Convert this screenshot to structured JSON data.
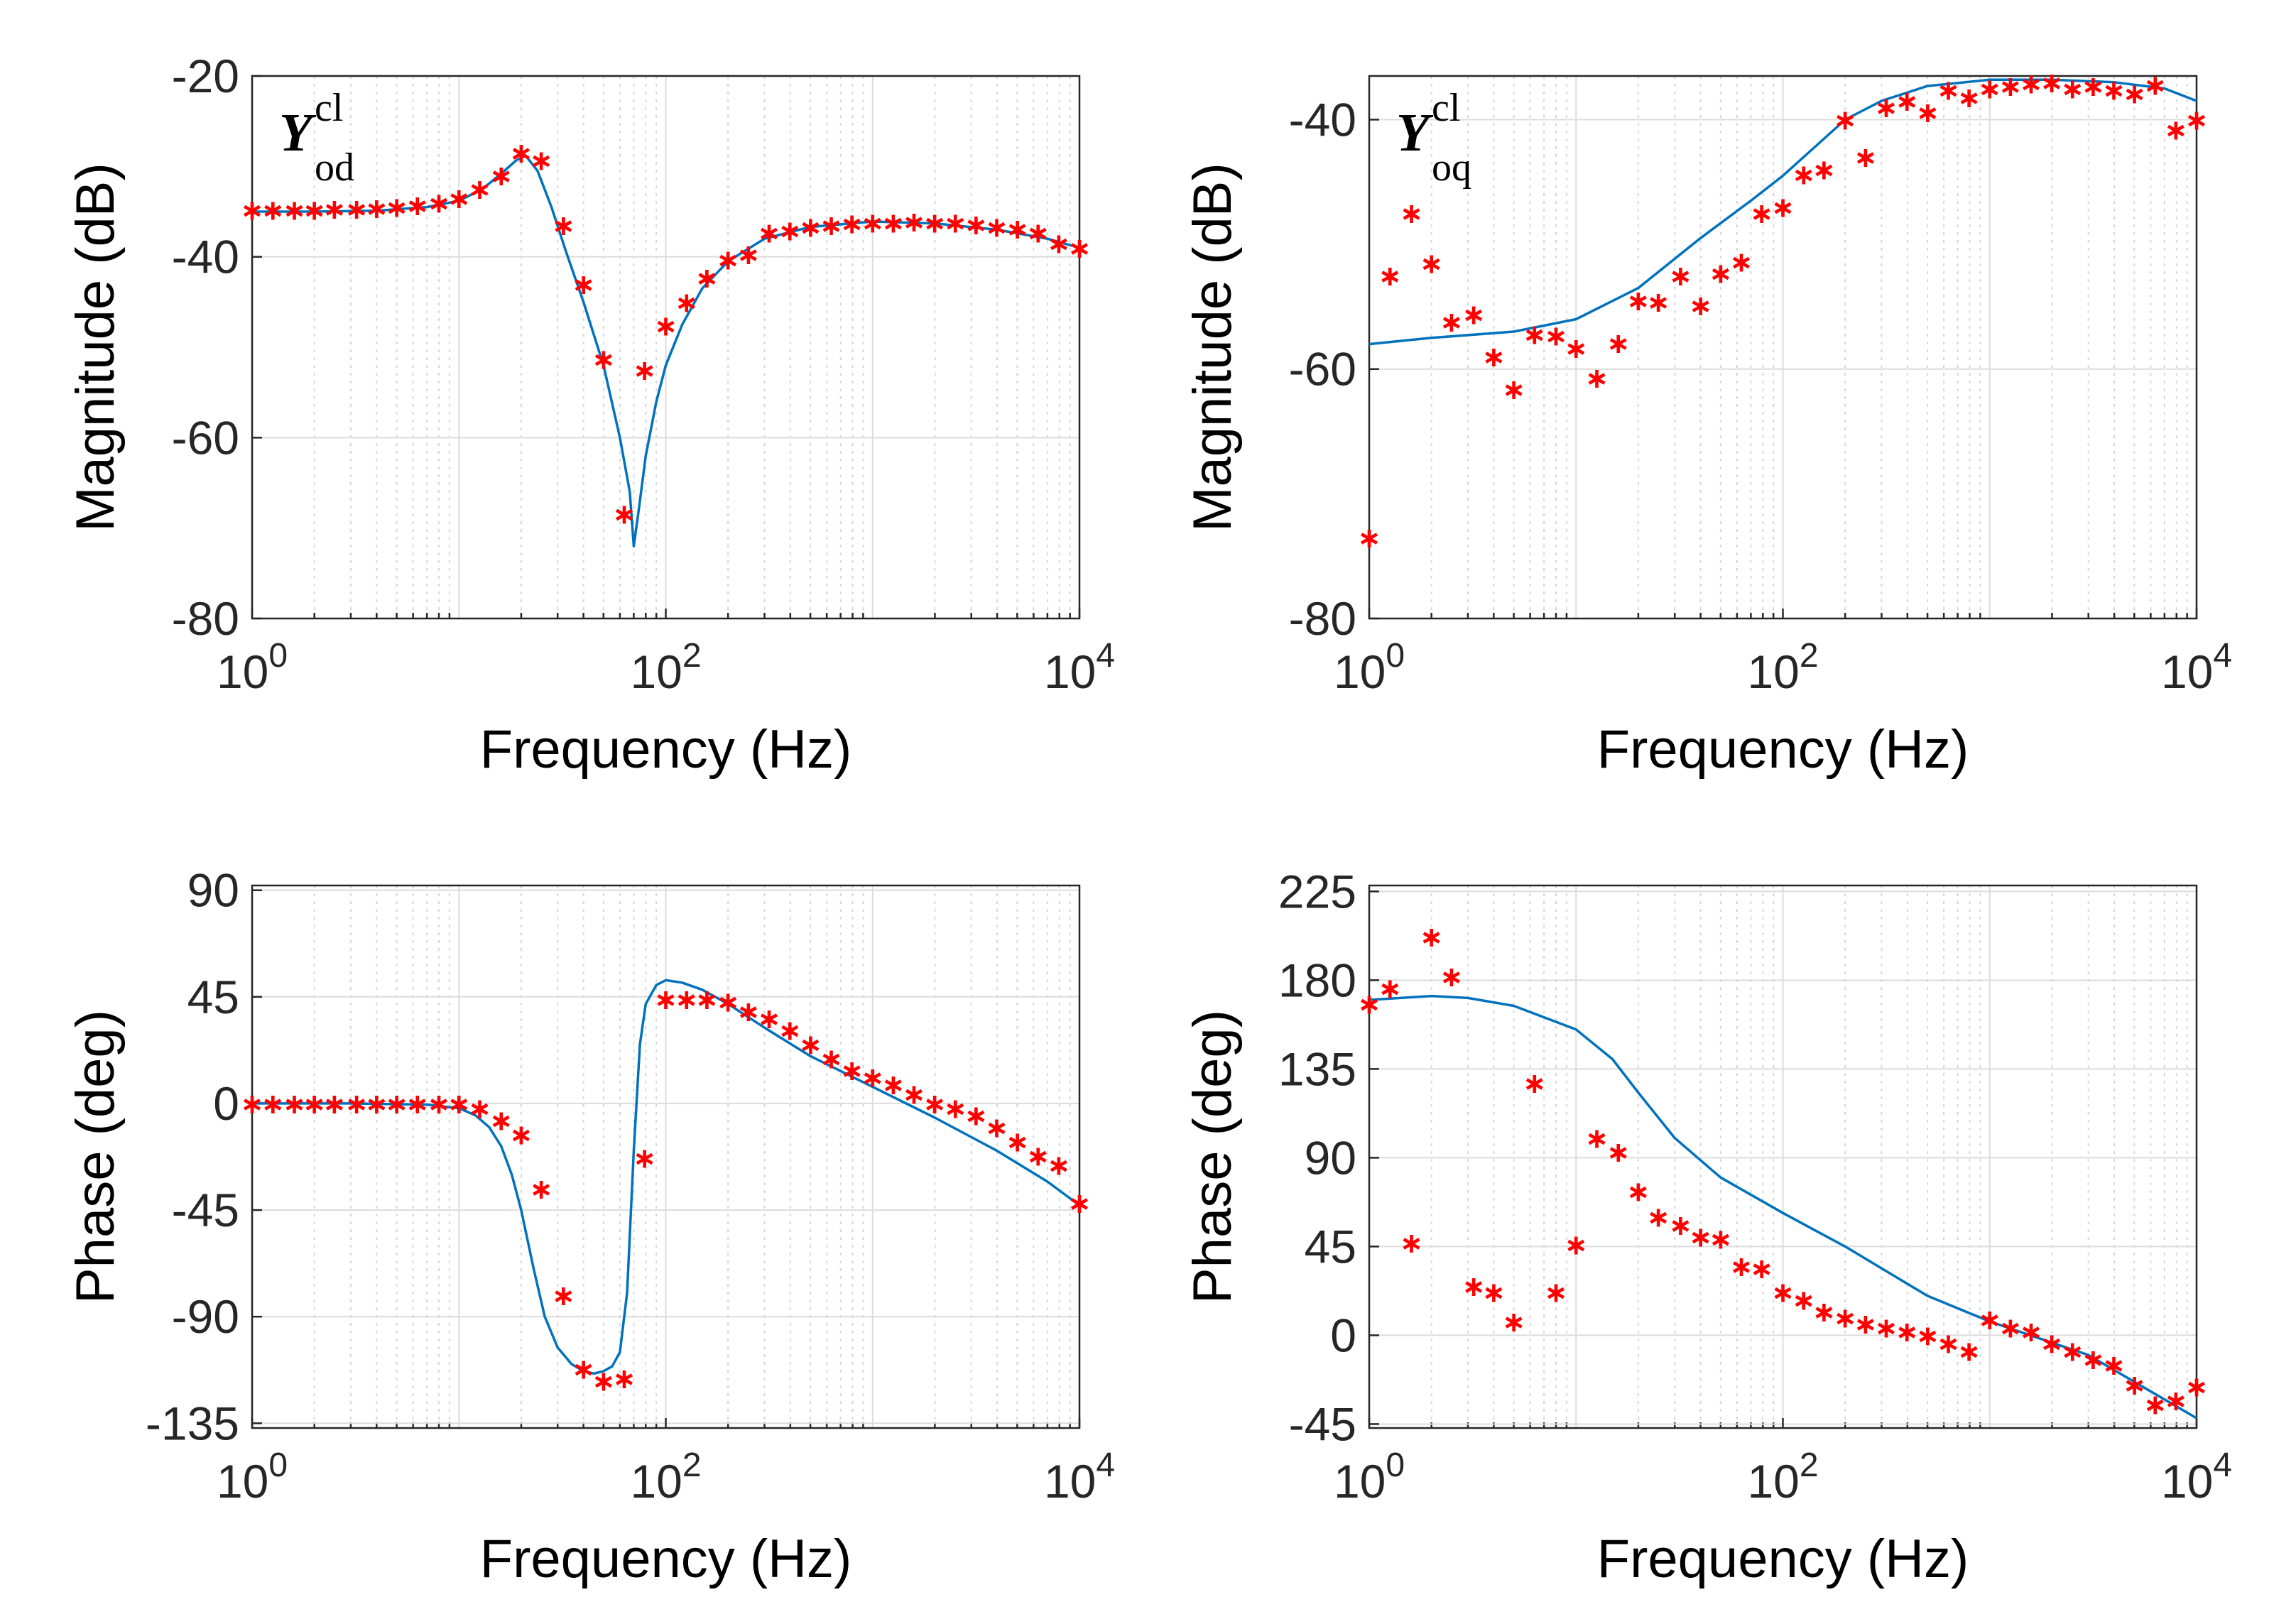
{
  "colors": {
    "model": "#0072BD",
    "measured": "#FF0000"
  },
  "chart_data": [
    {
      "id": "yod-mag",
      "type": "line",
      "title": "",
      "symbol": {
        "main": "Y",
        "sup": "cl",
        "sub": "od"
      },
      "xscale": "log",
      "xlabel": "Frequency  (Hz)",
      "ylabel": "Magnitude (dB)",
      "xlim": [
        1,
        10000
      ],
      "ylim": [
        -80,
        -20
      ],
      "xticks": [
        {
          "v": 1,
          "base": "10",
          "exp": "0"
        },
        {
          "v": 100,
          "base": "10",
          "exp": "2"
        },
        {
          "v": 10000,
          "base": "10",
          "exp": "4"
        }
      ],
      "yticks": [
        {
          "v": -20,
          "label": "-20"
        },
        {
          "v": -40,
          "label": "-40"
        },
        {
          "v": -60,
          "label": "-60"
        },
        {
          "v": -80,
          "label": "-80"
        }
      ],
      "series": [
        {
          "name": "model",
          "style": "line",
          "x": [
            1,
            2,
            4,
            7,
            10,
            13,
            16,
            19,
            21,
            24,
            28,
            33,
            40,
            50,
            60,
            67,
            70,
            74,
            80,
            90,
            100,
            120,
            150,
            200,
            300,
            500,
            1000,
            2000,
            4000,
            7000,
            10000
          ],
          "y": [
            -35,
            -35,
            -34.9,
            -34.5,
            -33.8,
            -32.5,
            -30.8,
            -29.3,
            -28.8,
            -30.5,
            -34.5,
            -39.5,
            -45,
            -52,
            -60,
            -66,
            -72,
            -68,
            -62,
            -56,
            -52,
            -47.5,
            -43.5,
            -40.5,
            -38,
            -36.7,
            -36.1,
            -36.3,
            -37,
            -38,
            -39
          ]
        },
        {
          "name": "measured",
          "style": "marker",
          "x": [
            1,
            1.26,
            1.6,
            2,
            2.5,
            3.2,
            4,
            5,
            6.3,
            8,
            10,
            12.6,
            16,
            20,
            25,
            32,
            40,
            50,
            63,
            79,
            100,
            126,
            158,
            200,
            251,
            316,
            398,
            501,
            631,
            794,
            1000,
            1259,
            1585,
            1995,
            2512,
            3162,
            3981,
            5012,
            6310,
            7943,
            10000
          ],
          "y": [
            -34.8,
            -34.8,
            -34.8,
            -34.8,
            -34.7,
            -34.7,
            -34.6,
            -34.5,
            -34.3,
            -34,
            -33.5,
            -32.5,
            -31,
            -28.5,
            -29.3,
            -36.5,
            -43,
            -51.3,
            -68.4,
            -52.5,
            -47.6,
            -45,
            -42.3,
            -40.3,
            -39.7,
            -37.3,
            -37.1,
            -36.7,
            -36.5,
            -36.3,
            -36.2,
            -36.2,
            -36.1,
            -36.2,
            -36.2,
            -36.4,
            -36.7,
            -36.9,
            -37.3,
            -38.5,
            -39
          ]
        }
      ]
    },
    {
      "id": "yoq-mag",
      "type": "line",
      "title": "",
      "symbol": {
        "main": "Y",
        "sup": "cl",
        "sub": "oq"
      },
      "xscale": "log",
      "xlabel": "Frequency  (Hz)",
      "ylabel": "Magnitude (dB)",
      "xlim": [
        1,
        10000
      ],
      "ylim": [
        -80,
        -36.5
      ],
      "xticks": [
        {
          "v": 1,
          "base": "10",
          "exp": "0"
        },
        {
          "v": 100,
          "base": "10",
          "exp": "2"
        },
        {
          "v": 10000,
          "base": "10",
          "exp": "4"
        }
      ],
      "yticks": [
        {
          "v": -40,
          "label": "-40"
        },
        {
          "v": -60,
          "label": "-60"
        },
        {
          "v": -80,
          "label": "-80"
        }
      ],
      "series": [
        {
          "name": "model",
          "style": "line",
          "x": [
            1,
            2,
            5,
            10,
            20,
            40,
            70,
            100,
            200,
            300,
            500,
            1000,
            2000,
            4000,
            7000,
            10000
          ],
          "y": [
            -58,
            -57.5,
            -57,
            -56,
            -53.5,
            -49.5,
            -46.5,
            -44.5,
            -40,
            -38.5,
            -37.3,
            -36.8,
            -36.8,
            -37,
            -37.5,
            -38.5
          ]
        },
        {
          "name": "measured",
          "style": "marker",
          "x": [
            1,
            1.26,
            1.6,
            2,
            2.5,
            3.2,
            4,
            5,
            6.3,
            8,
            10,
            12.6,
            16,
            20,
            25,
            32,
            40,
            50,
            63,
            79,
            100,
            126,
            158,
            200,
            251,
            316,
            398,
            501,
            631,
            794,
            1000,
            1259,
            1585,
            1995,
            2512,
            3162,
            3981,
            5012,
            6310,
            7943,
            10000
          ],
          "y": [
            -73.5,
            -52.5,
            -47.5,
            -51.5,
            -56.2,
            -55.6,
            -59,
            -61.6,
            -57.2,
            -57.3,
            -58.3,
            -60.7,
            -57.9,
            -54.5,
            -54.6,
            -52.5,
            -54.9,
            -52.3,
            -51.4,
            -47.5,
            -47,
            -44.4,
            -44,
            -40,
            -43,
            -39,
            -38.5,
            -39.4,
            -37.6,
            -38.2,
            -37.5,
            -37.3,
            -37.1,
            -37,
            -37.5,
            -37.3,
            -37.6,
            -37.9,
            -37.2,
            -40.8,
            -40
          ]
        }
      ]
    },
    {
      "id": "yod-phase",
      "type": "line",
      "title": "",
      "xscale": "log",
      "xlabel": "Frequency  (Hz)",
      "ylabel": "Phase (deg)",
      "xlim": [
        1,
        10000
      ],
      "ylim": [
        -137,
        92
      ],
      "xticks": [
        {
          "v": 1,
          "base": "10",
          "exp": "0"
        },
        {
          "v": 100,
          "base": "10",
          "exp": "2"
        },
        {
          "v": 10000,
          "base": "10",
          "exp": "4"
        }
      ],
      "yticks": [
        {
          "v": 90,
          "label": "90"
        },
        {
          "v": 45,
          "label": "45"
        },
        {
          "v": 0,
          "label": "0"
        },
        {
          "v": -45,
          "label": "-45"
        },
        {
          "v": -90,
          "label": "-90"
        },
        {
          "v": -135,
          "label": "-135"
        }
      ],
      "series": [
        {
          "name": "model",
          "style": "line",
          "x": [
            1,
            3,
            7,
            10,
            12,
            14,
            16,
            18,
            20,
            23,
            26,
            30,
            35,
            40,
            45,
            50,
            55,
            60,
            65,
            70,
            75,
            80,
            90,
            100,
            120,
            150,
            200,
            300,
            500,
            1000,
            2000,
            4000,
            7000,
            10000
          ],
          "y": [
            0,
            0,
            -0.5,
            -2,
            -5,
            -10,
            -18,
            -30,
            -45,
            -70,
            -90,
            -103,
            -110,
            -113,
            -114,
            -113,
            -111,
            -105,
            -80,
            -20,
            25,
            42,
            50,
            52,
            51,
            48,
            42,
            32,
            20,
            7,
            -6,
            -20,
            -33,
            -43
          ]
        },
        {
          "name": "measured",
          "style": "marker",
          "x": [
            1,
            1.26,
            1.6,
            2,
            2.5,
            3.2,
            4,
            5,
            6.3,
            8,
            10,
            12.6,
            16,
            20,
            25,
            32,
            40,
            50,
            63,
            79,
            100,
            126,
            158,
            200,
            251,
            316,
            398,
            501,
            631,
            794,
            1000,
            1259,
            1585,
            1995,
            2512,
            3162,
            3981,
            5012,
            6310,
            7943,
            10000
          ],
          "y": [
            0,
            0,
            0,
            0,
            0,
            0,
            0,
            0,
            0,
            0,
            0,
            -2,
            -7,
            -13,
            -36,
            -81,
            -112,
            -117,
            -116,
            -23,
            44,
            44,
            44,
            43,
            39,
            36,
            31,
            25,
            19,
            14,
            11,
            8,
            4,
            0,
            -2,
            -5,
            -10,
            -16,
            -22,
            -26,
            -42
          ]
        }
      ]
    },
    {
      "id": "yoq-phase",
      "type": "line",
      "title": "",
      "xscale": "log",
      "xlabel": "Frequency  (Hz)",
      "ylabel": "Phase (deg)",
      "xlim": [
        1,
        10000
      ],
      "ylim": [
        -47,
        228
      ],
      "xticks": [
        {
          "v": 1,
          "base": "10",
          "exp": "0"
        },
        {
          "v": 100,
          "base": "10",
          "exp": "2"
        },
        {
          "v": 10000,
          "base": "10",
          "exp": "4"
        }
      ],
      "yticks": [
        {
          "v": 225,
          "label": "225"
        },
        {
          "v": 180,
          "label": "180"
        },
        {
          "v": 135,
          "label": "135"
        },
        {
          "v": 90,
          "label": "90"
        },
        {
          "v": 45,
          "label": "45"
        },
        {
          "v": 0,
          "label": "0"
        },
        {
          "v": -45,
          "label": "-45"
        }
      ],
      "series": [
        {
          "name": "model",
          "style": "line",
          "x": [
            1,
            2,
            3,
            5,
            10,
            15,
            20,
            30,
            50,
            100,
            200,
            500,
            1000,
            3000,
            10000
          ],
          "y": [
            170,
            172,
            171,
            167,
            155,
            140,
            123,
            100,
            80,
            62,
            45,
            20,
            7,
            -10,
            -42
          ]
        },
        {
          "name": "measured",
          "style": "marker",
          "x": [
            1,
            1.26,
            1.6,
            2,
            2.5,
            3.2,
            4,
            5,
            6.3,
            8,
            10,
            12.6,
            16,
            20,
            25,
            32,
            40,
            50,
            63,
            79,
            100,
            126,
            158,
            200,
            251,
            316,
            398,
            501,
            631,
            794,
            1000,
            1259,
            1585,
            1995,
            2512,
            3162,
            3981,
            5012,
            6310,
            7943,
            10000
          ],
          "y": [
            168,
            176,
            47,
            202,
            182,
            25,
            22,
            7,
            128,
            22,
            46,
            100,
            93,
            73,
            60,
            56,
            50,
            49,
            35,
            34,
            22,
            18,
            12,
            9,
            6,
            4,
            2,
            0,
            -4,
            -8,
            8,
            4,
            2,
            -4,
            -8,
            -12,
            -15,
            -25,
            -35,
            -33,
            -26
          ]
        }
      ]
    }
  ]
}
